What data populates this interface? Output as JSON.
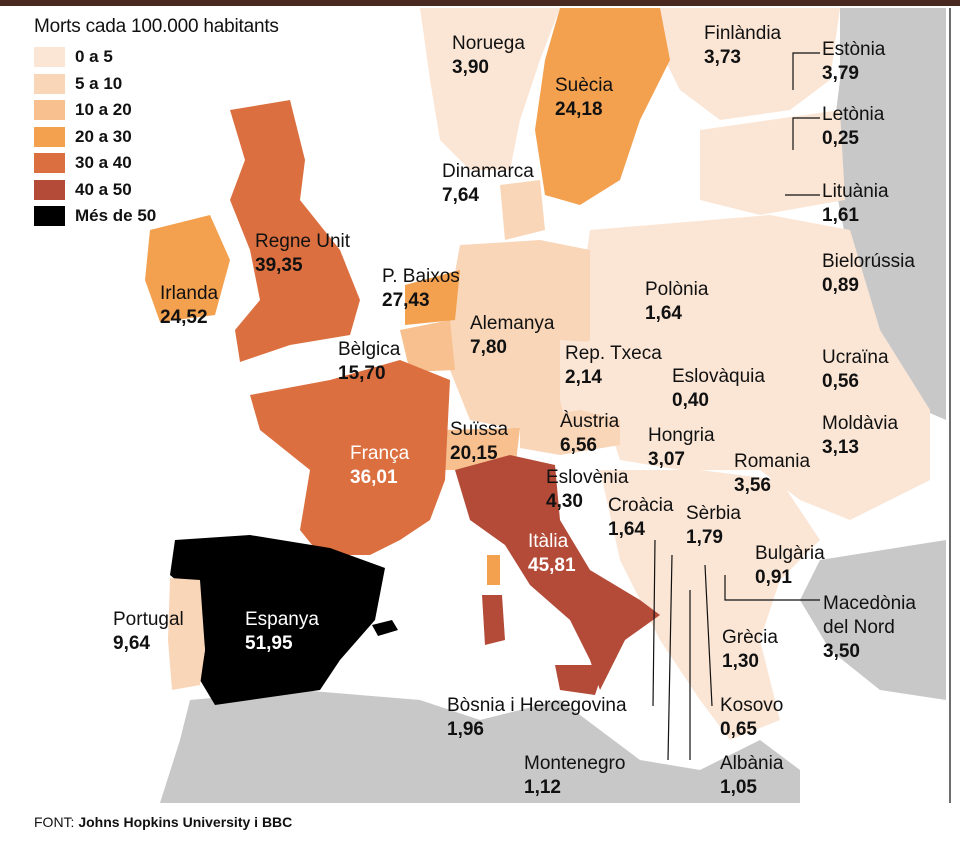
{
  "legend": {
    "title": "Morts cada 100.000 habitants",
    "items": [
      {
        "label": "0 a 5",
        "color": "#fbe6d6"
      },
      {
        "label": "5 a 10",
        "color": "#f9d6b8"
      },
      {
        "label": "10 a 20",
        "color": "#f7c08e"
      },
      {
        "label": "20 a 30",
        "color": "#f3a04f"
      },
      {
        "label": "30 a 40",
        "color": "#dc6f3f"
      },
      {
        "label": "40 a 50",
        "color": "#b44b38"
      },
      {
        "label": "Més de 50",
        "color": "#000000"
      }
    ]
  },
  "countries": {
    "noruega": {
      "name": "Noruega",
      "value": "3,90"
    },
    "suecia": {
      "name": "Suècia",
      "value": "24,18"
    },
    "finlandia": {
      "name": "Finlàndia",
      "value": "3,73"
    },
    "estonia": {
      "name": "Estònia",
      "value": "3,79"
    },
    "letonia": {
      "name": "Letònia",
      "value": "0,25"
    },
    "lituania": {
      "name": "Lituània",
      "value": "1,61"
    },
    "bielorussia": {
      "name": "Bielorússia",
      "value": "0,89"
    },
    "dinamarca": {
      "name": "Dinamarca",
      "value": "7,64"
    },
    "regne_unit": {
      "name": "Regne Unit",
      "value": "39,35"
    },
    "irlanda": {
      "name": "Irlanda",
      "value": "24,52"
    },
    "p_baixos": {
      "name": "P. Baixos",
      "value": "27,43"
    },
    "alemanya": {
      "name": "Alemanya",
      "value": "7,80"
    },
    "polonia": {
      "name": "Polònia",
      "value": "1,64"
    },
    "belgica": {
      "name": "Bèlgica",
      "value": "15,70"
    },
    "rep_txeca": {
      "name": "Rep. Txeca",
      "value": "2,14"
    },
    "eslovaquia": {
      "name": "Eslovàquia",
      "value": "0,40"
    },
    "ucraina": {
      "name": "Ucraïna",
      "value": "0,56"
    },
    "moldavia": {
      "name": "Moldàvia",
      "value": "3,13"
    },
    "austria": {
      "name": "Àustria",
      "value": "6,56"
    },
    "suissa": {
      "name": "Suïssa",
      "value": "20,15"
    },
    "hongria": {
      "name": "Hongria",
      "value": "3,07"
    },
    "franca": {
      "name": "França",
      "value": "36,01"
    },
    "romania": {
      "name": "Romania",
      "value": "3,56"
    },
    "eslovenia": {
      "name": "Eslovènia",
      "value": "4,30"
    },
    "croacia": {
      "name": "Croàcia",
      "value": "1,64"
    },
    "serbia": {
      "name": "Sèrbia",
      "value": "1,79"
    },
    "italia": {
      "name": "Itàlia",
      "value": "45,81"
    },
    "bulgaria": {
      "name": "Bulgària",
      "value": "0,91"
    },
    "macedonia_name1": "Macedònia",
    "macedonia_name2": "del Nord",
    "macedonia_value": "3,50",
    "espanya": {
      "name": "Espanya",
      "value": "51,95"
    },
    "portugal": {
      "name": "Portugal",
      "value": "9,64"
    },
    "grecia": {
      "name": "Grècia",
      "value": "1,30"
    },
    "bosnia": {
      "name": "Bòsnia i Hercegovina",
      "value": "1,96"
    },
    "kosovo": {
      "name": "Kosovo",
      "value": "0,65"
    },
    "montenegro": {
      "name": "Montenegro",
      "value": "1,12"
    },
    "albania": {
      "name": "Albània",
      "value": "1,05"
    }
  },
  "source": {
    "prefix": "FONT:",
    "text": "Johns Hopkins University i BBC"
  },
  "colors": {
    "sea": "#ffffff",
    "non_europe": "#c8c8c8",
    "border": "#ffffff"
  }
}
